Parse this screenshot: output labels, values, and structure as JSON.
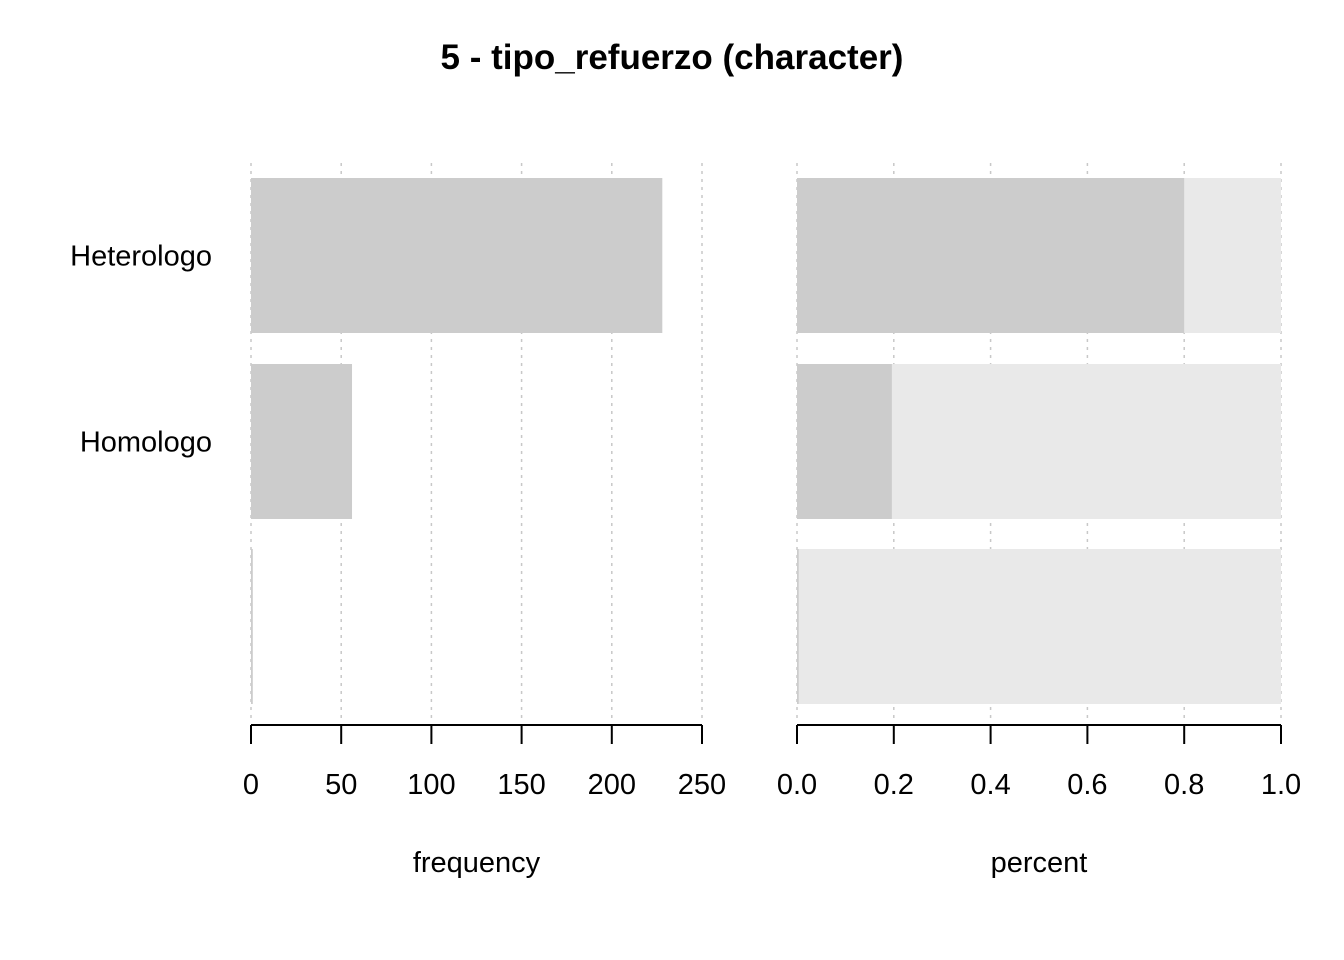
{
  "chart_data": {
    "title": "5 - tipo_refuerzo (character)",
    "categories": [
      "Heterologo",
      "Homologo",
      ""
    ],
    "colors": {
      "bar": "#cccccc",
      "remainder": "#e9e9e9",
      "grid": "#c8c8c8",
      "axis": "#000000"
    },
    "grid": true,
    "panels": [
      {
        "type": "bar",
        "orientation": "horizontal",
        "xlabel": "frequency",
        "xlim": [
          0,
          250
        ],
        "ticks": [
          0,
          50,
          100,
          150,
          200,
          250
        ],
        "tick_labels": [
          "0",
          "50",
          "100",
          "150",
          "200",
          "250"
        ],
        "values": [
          228,
          56,
          1
        ]
      },
      {
        "type": "bar",
        "orientation": "horizontal",
        "stacked_remainder": true,
        "xlabel": "percent",
        "xlim": [
          0,
          1
        ],
        "ticks": [
          0,
          0.2,
          0.4,
          0.6,
          0.8,
          1.0
        ],
        "tick_labels": [
          "0.0",
          "0.2",
          "0.4",
          "0.6",
          "0.8",
          "1.0"
        ],
        "values": [
          0.8,
          0.196,
          0.0035
        ]
      }
    ]
  }
}
